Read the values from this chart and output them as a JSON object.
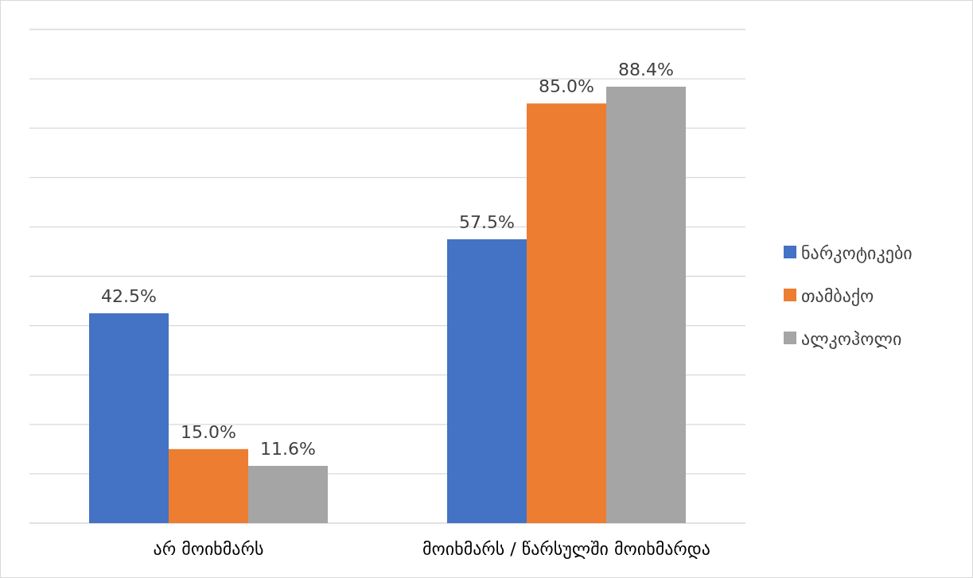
{
  "chart_data": {
    "type": "bar",
    "categories": [
      "არ მოიხმარს",
      "მოიხმარს / წარსულში მოიხმარდა"
    ],
    "series": [
      {
        "name": "ნარკოტიკები",
        "color": "#4472c4",
        "values": [
          42.5,
          57.5
        ],
        "value_labels": [
          "42.5%",
          "57.5%"
        ]
      },
      {
        "name": "თამბაქო",
        "color": "#ed7d31",
        "values": [
          15.0,
          85.0
        ],
        "value_labels": [
          "15.0%",
          "85.0%"
        ]
      },
      {
        "name": "ალკოჰოლი",
        "color": "#a5a5a5",
        "values": [
          11.6,
          88.4
        ],
        "value_labels": [
          "11.6%",
          "88.4%"
        ]
      }
    ],
    "ylim": [
      0,
      100
    ],
    "yticks": [
      {
        "value": 0,
        "label": null
      },
      {
        "value": 10,
        "label": null
      },
      {
        "value": 20,
        "label": null
      },
      {
        "value": 30,
        "label": null
      },
      {
        "value": 40,
        "label": null
      },
      {
        "value": 50,
        "label": null
      },
      {
        "value": 60,
        "label": null
      },
      {
        "value": 70,
        "label": null
      },
      {
        "value": 80,
        "label": null
      },
      {
        "value": 90,
        "label": null
      },
      {
        "value": 100,
        "label": null
      }
    ],
    "grid": "y",
    "legend": "right",
    "tick_labels": "x"
  }
}
